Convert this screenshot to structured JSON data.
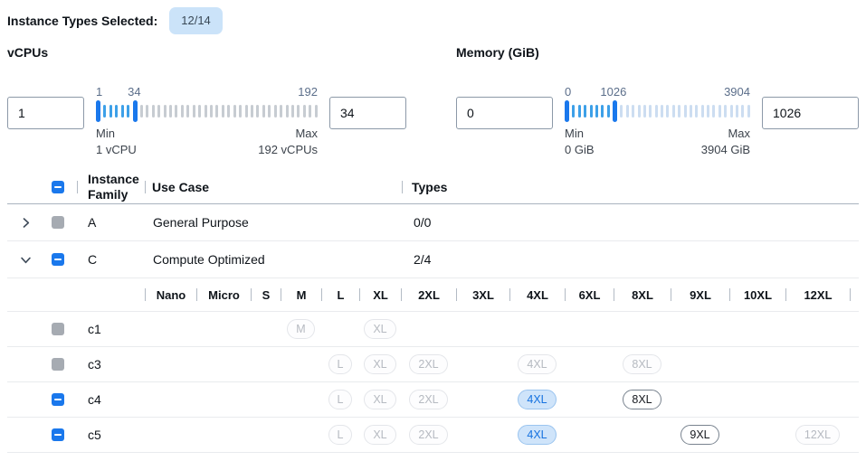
{
  "colors": {
    "accent": "#1a78ec",
    "active_tick": "#3da0e8",
    "badge_bg": "#cbe3f9",
    "selected_pill_bg": "#cfe4fa",
    "selected_pill_text": "#1672e0",
    "disabled_checkbox": "#a6abb2"
  },
  "header": {
    "label": "Instance Types Selected:",
    "badge": "12/14"
  },
  "filters": {
    "vcpus": {
      "title": "vCPUs",
      "from_value": "1",
      "to_value": "34",
      "scale_labels": {
        "low": "1",
        "mid": "34",
        "high": "192"
      },
      "range": {
        "min": 1,
        "max": 192,
        "selected_from": 1,
        "selected_to": 34
      },
      "min_label": "Min",
      "min_detail": "1 vCPU",
      "max_label": "Max",
      "max_detail": "192 vCPUs",
      "inactive_tick_color": "#c7ccd2"
    },
    "memory": {
      "title": "Memory (GiB)",
      "from_value": "0",
      "to_value": "1026",
      "scale_labels": {
        "low": "0",
        "mid": "1026",
        "high": "3904"
      },
      "range": {
        "min": 0,
        "max": 3904,
        "selected_from": 0,
        "selected_to": 1026
      },
      "min_label": "Min",
      "min_detail": "0 GiB",
      "max_label": "Max",
      "max_detail": "3904 GiB",
      "inactive_tick_color": "#ccddf1"
    }
  },
  "table": {
    "select_all_state": "indeterminate",
    "columns": {
      "family": "Instance Family",
      "use_case": "Use Case",
      "types": "Types"
    },
    "size_columns": [
      "Nano",
      "Micro",
      "S",
      "M",
      "L",
      "XL",
      "2XL",
      "3XL",
      "4XL",
      "6XL",
      "8XL",
      "9XL",
      "10XL",
      "12XL"
    ],
    "rows": [
      {
        "type": "family",
        "expanded": false,
        "checkbox": "disabled",
        "family": "A",
        "use_case": "General Purpose",
        "types": "0/0"
      },
      {
        "type": "family",
        "expanded": true,
        "checkbox": "indeterminate",
        "family": "C",
        "use_case": "Compute Optimized",
        "types": "2/4"
      },
      {
        "type": "size_header"
      },
      {
        "type": "instance",
        "checkbox": "disabled",
        "name": "c1",
        "pills": [
          {
            "size": "M",
            "state": "disabled"
          },
          {
            "size": "XL",
            "state": "disabled"
          }
        ]
      },
      {
        "type": "instance",
        "checkbox": "disabled",
        "name": "c3",
        "pills": [
          {
            "size": "L",
            "state": "disabled"
          },
          {
            "size": "XL",
            "state": "disabled"
          },
          {
            "size": "2XL",
            "state": "disabled"
          },
          {
            "size": "4XL",
            "state": "disabled"
          },
          {
            "size": "8XL",
            "state": "disabled"
          }
        ]
      },
      {
        "type": "instance",
        "checkbox": "indeterminate",
        "name": "c4",
        "pills": [
          {
            "size": "L",
            "state": "disabled"
          },
          {
            "size": "XL",
            "state": "disabled"
          },
          {
            "size": "2XL",
            "state": "disabled"
          },
          {
            "size": "4XL",
            "state": "selected"
          },
          {
            "size": "8XL",
            "state": "enabled"
          }
        ]
      },
      {
        "type": "instance",
        "checkbox": "indeterminate",
        "name": "c5",
        "pills": [
          {
            "size": "L",
            "state": "disabled"
          },
          {
            "size": "XL",
            "state": "disabled"
          },
          {
            "size": "2XL",
            "state": "disabled"
          },
          {
            "size": "4XL",
            "state": "selected"
          },
          {
            "size": "9XL",
            "state": "enabled"
          },
          {
            "size": "12XL",
            "state": "disabled"
          }
        ]
      }
    ]
  }
}
